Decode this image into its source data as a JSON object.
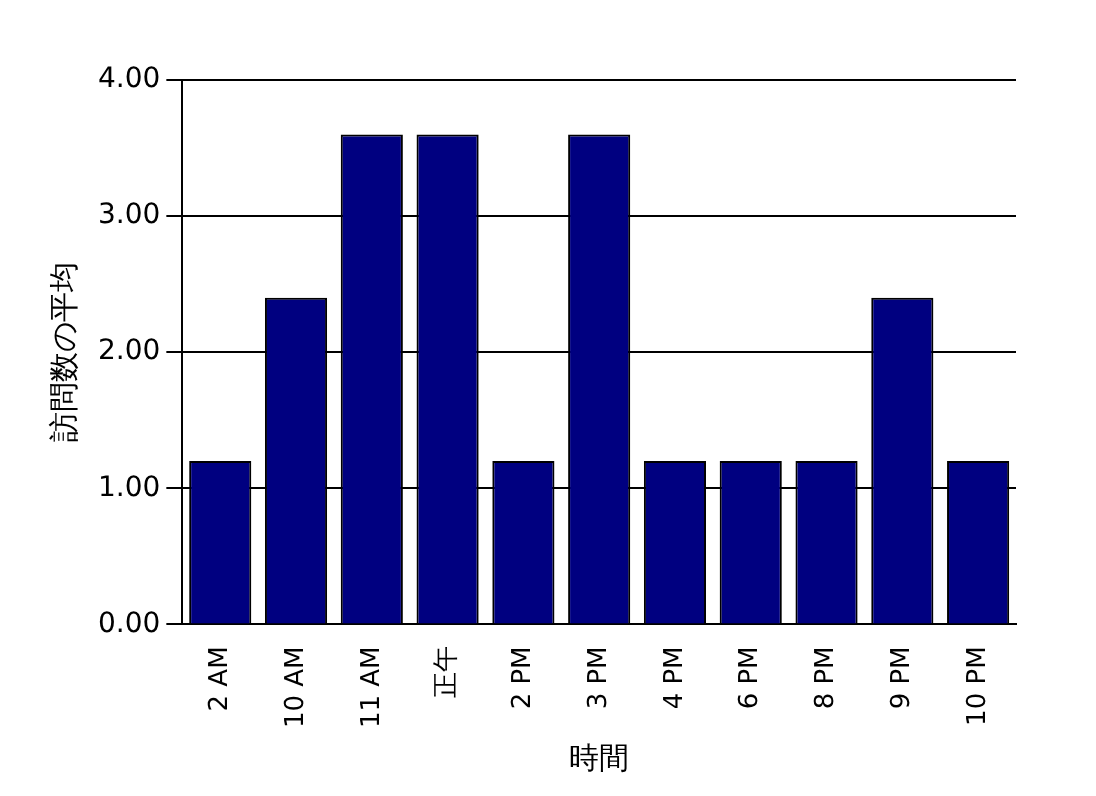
{
  "chart_data": {
    "type": "bar",
    "xlabel": "時間",
    "ylabel": "訪問数の平均",
    "categories": [
      "2 AM",
      "10 AM",
      "11 AM",
      "正午",
      "2 PM",
      "3 PM",
      "4 PM",
      "6 PM",
      "8 PM",
      "9 PM",
      "10 PM"
    ],
    "values": [
      1.2,
      2.4,
      3.6,
      3.6,
      1.2,
      3.6,
      1.2,
      1.2,
      1.2,
      2.4,
      1.2
    ],
    "color": "#000080",
    "ylim": [
      0,
      4
    ],
    "yticks": [
      {
        "value": 0,
        "label": "0.00"
      },
      {
        "value": 1,
        "label": "1.00"
      },
      {
        "value": 2,
        "label": "2.00"
      },
      {
        "value": 3,
        "label": "3.00"
      },
      {
        "value": 4,
        "label": "4.00"
      }
    ],
    "grid": "y",
    "legend": false
  }
}
